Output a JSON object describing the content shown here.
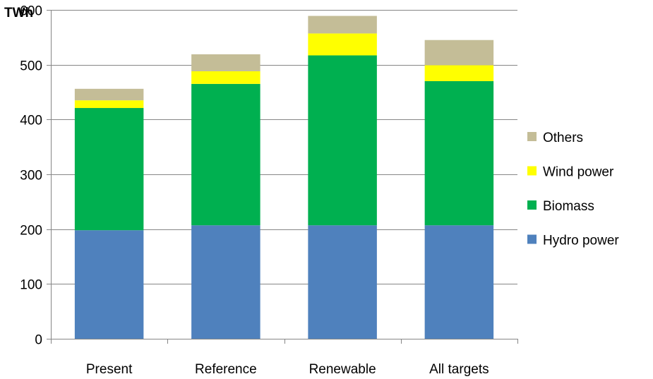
{
  "chart_data": {
    "type": "bar",
    "stacked": true,
    "categories": [
      "Present",
      "Reference",
      "Renewable",
      "All targets"
    ],
    "series": [
      {
        "name": "Hydro power",
        "color": "#4F81BD",
        "values": [
          198,
          207,
          207,
          207
        ]
      },
      {
        "name": "Biomass",
        "color": "#00B050",
        "values": [
          223,
          258,
          310,
          263
        ]
      },
      {
        "name": "Wind power",
        "color": "#FFFF00",
        "values": [
          14,
          23,
          40,
          29
        ]
      },
      {
        "name": "Others",
        "color": "#C4BD97",
        "values": [
          21,
          31,
          32,
          46
        ]
      }
    ],
    "ylabel": "TWh",
    "ylim": [
      0,
      600
    ],
    "yticks": [
      "0",
      "100",
      "200",
      "300",
      "400",
      "500",
      "600"
    ],
    "grid": true,
    "legend": "right",
    "legend_order": [
      "Others",
      "Wind power",
      "Biomass",
      "Hydro power"
    ]
  }
}
